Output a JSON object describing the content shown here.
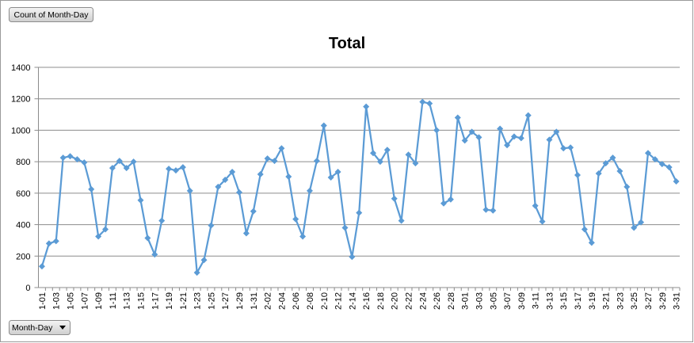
{
  "chart_data": {
    "type": "line",
    "title": "Total",
    "field_button": "Count of Month-Day",
    "axis_field_button": "Month-Day",
    "categories": [
      "1-01",
      null,
      "1-03",
      null,
      "1-05",
      null,
      "1-07",
      null,
      "1-09",
      null,
      "1-11",
      null,
      "1-13",
      null,
      "1-15",
      null,
      "1-17",
      null,
      "1-19",
      null,
      "1-21",
      null,
      "1-23",
      null,
      "1-25",
      null,
      "1-27",
      null,
      "1-29",
      null,
      "1-31",
      null,
      "2-02",
      null,
      "2-04",
      null,
      "2-06",
      null,
      "2-08",
      null,
      "2-10",
      null,
      "2-12",
      null,
      "2-14",
      null,
      "2-16",
      null,
      "2-18",
      null,
      "2-20",
      null,
      "2-22",
      null,
      "2-24",
      null,
      "2-26",
      null,
      "2-28",
      null,
      "3-01",
      null,
      "3-03",
      null,
      "3-05",
      null,
      "3-07",
      null,
      "3-09",
      null,
      "3-11",
      null,
      "3-13",
      null,
      "3-15",
      null,
      "3-17",
      null,
      "3-19",
      null,
      "3-21",
      null,
      "3-23",
      null,
      "3-25",
      null,
      "3-27",
      null,
      "3-29",
      null,
      "3-31"
    ],
    "series": [
      {
        "name": "Total",
        "color": "#5b9bd5",
        "values": [
          135,
          280,
          295,
          825,
          835,
          815,
          795,
          625,
          325,
          370,
          760,
          805,
          760,
          800,
          555,
          315,
          210,
          425,
          755,
          745,
          765,
          615,
          95,
          175,
          395,
          640,
          685,
          735,
          605,
          345,
          485,
          720,
          820,
          805,
          885,
          705,
          435,
          325,
          615,
          805,
          1030,
          700,
          735,
          380,
          195,
          475,
          1150,
          855,
          800,
          875,
          565,
          425,
          845,
          790,
          1180,
          1170,
          1000,
          535,
          560,
          1080,
          935,
          990,
          955,
          495,
          490,
          1010,
          905,
          960,
          950,
          1095,
          520,
          420,
          940,
          990,
          885,
          890,
          715,
          370,
          285,
          725,
          790,
          825,
          740,
          640,
          380,
          415,
          855,
          815,
          785,
          765,
          675
        ]
      }
    ],
    "ylim": [
      0,
      1400
    ],
    "yticks": [
      0,
      200,
      400,
      600,
      800,
      1000,
      1200,
      1400
    ],
    "grid": true
  }
}
